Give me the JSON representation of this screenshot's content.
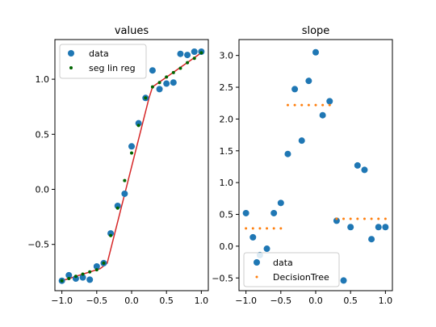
{
  "chart_data": [
    {
      "type": "scatter",
      "title": "values",
      "xlabel": "",
      "ylabel": "",
      "xlim": [
        -1.1,
        1.1
      ],
      "ylim": [
        -0.92,
        1.36
      ],
      "xticks": [
        -1.0,
        -0.5,
        0.0,
        0.5,
        1.0
      ],
      "xtick_labels": [
        "−1.0",
        "−0.5",
        "0.0",
        "0.5",
        "1.0"
      ],
      "yticks": [
        -0.5,
        0.0,
        0.5,
        1.0
      ],
      "ytick_labels": [
        "−0.5",
        "0.0",
        "0.5",
        "1.0"
      ],
      "legend_position": "top-left",
      "series": [
        {
          "name": "data",
          "kind": "points",
          "color": "#1f77b4",
          "x": [
            -1.0,
            -0.9,
            -0.8,
            -0.7,
            -0.6,
            -0.5,
            -0.4,
            -0.3,
            -0.2,
            -0.1,
            0.0,
            0.1,
            0.2,
            0.3,
            0.4,
            0.5,
            0.6,
            0.7,
            0.8,
            0.9,
            1.0
          ],
          "y": [
            -0.83,
            -0.78,
            -0.81,
            -0.8,
            -0.82,
            -0.7,
            -0.67,
            -0.4,
            -0.15,
            -0.04,
            0.39,
            0.6,
            0.83,
            1.08,
            0.91,
            0.96,
            0.97,
            1.23,
            1.22,
            1.25,
            1.25
          ]
        },
        {
          "name": "seg lin reg",
          "kind": "dots",
          "color": "#006400",
          "x": [
            -1.0,
            -0.9,
            -0.8,
            -0.7,
            -0.6,
            -0.5,
            -0.4,
            -0.3,
            -0.2,
            -0.1,
            0.0,
            0.1,
            0.2,
            0.3,
            0.4,
            0.5,
            0.6,
            0.7,
            0.8,
            0.9,
            1.0
          ],
          "y": [
            -0.83,
            -0.81,
            -0.79,
            -0.77,
            -0.75,
            -0.73,
            -0.67,
            -0.42,
            -0.17,
            0.08,
            0.33,
            0.58,
            0.83,
            0.93,
            0.97,
            1.02,
            1.06,
            1.1,
            1.15,
            1.19,
            1.24
          ]
        },
        {
          "name": "",
          "kind": "line",
          "color": "#d62728",
          "x": [
            -1.0,
            -0.45,
            -0.35,
            0.25,
            0.3,
            1.0
          ],
          "y": [
            -0.83,
            -0.72,
            -0.67,
            0.83,
            0.93,
            1.24
          ]
        }
      ]
    },
    {
      "type": "scatter",
      "title": "slope",
      "xlabel": "",
      "ylabel": "",
      "xlim": [
        -1.1,
        1.1
      ],
      "ylim": [
        -0.7,
        3.25
      ],
      "xticks": [
        -1.0,
        -0.5,
        0.0,
        0.5,
        1.0
      ],
      "xtick_labels": [
        "−1.0",
        "−0.5",
        "0.0",
        "0.5",
        "1.0"
      ],
      "yticks": [
        -0.5,
        0.0,
        0.5,
        1.0,
        1.5,
        2.0,
        2.5,
        3.0
      ],
      "ytick_labels": [
        "−0.5",
        "0.0",
        "0.5",
        "1.0",
        "1.5",
        "2.0",
        "2.5",
        "3.0"
      ],
      "legend_position": "bottom-left",
      "series": [
        {
          "name": "data",
          "kind": "points",
          "color": "#1f77b4",
          "x": [
            -1.0,
            -0.9,
            -0.8,
            -0.7,
            -0.6,
            -0.5,
            -0.4,
            -0.3,
            -0.2,
            -0.1,
            0.0,
            0.1,
            0.2,
            0.3,
            0.4,
            0.5,
            0.6,
            0.7,
            0.8,
            0.9,
            1.0
          ],
          "y": [
            0.52,
            0.14,
            -0.14,
            -0.04,
            0.52,
            0.68,
            1.45,
            2.47,
            1.66,
            2.6,
            3.05,
            2.06,
            2.28,
            0.4,
            -0.54,
            0.3,
            1.27,
            1.2,
            0.11,
            0.3,
            0.3
          ]
        },
        {
          "name": "DecisionTree",
          "kind": "dots",
          "color": "#ff7f0e",
          "x": [
            -1.0,
            -0.9,
            -0.8,
            -0.7,
            -0.6,
            -0.5,
            -0.4,
            -0.3,
            -0.2,
            -0.1,
            0.0,
            0.1,
            0.2,
            0.3,
            0.4,
            0.5,
            0.6,
            0.7,
            0.8,
            0.9,
            1.0
          ],
          "y": [
            0.28,
            0.28,
            0.28,
            0.28,
            0.28,
            0.28,
            2.22,
            2.22,
            2.22,
            2.22,
            2.22,
            2.22,
            2.22,
            0.43,
            0.43,
            0.43,
            0.43,
            0.43,
            0.43,
            0.43,
            0.43
          ]
        }
      ]
    }
  ]
}
